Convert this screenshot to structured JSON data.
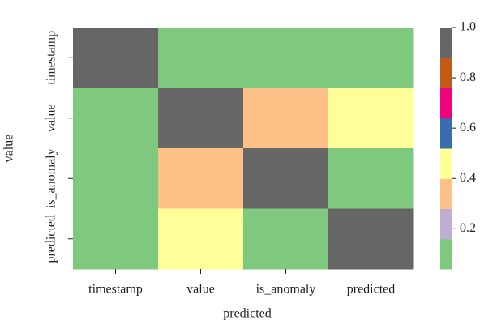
{
  "chart_data": {
    "type": "heatmap",
    "xlabel": "predicted",
    "ylabel": "value",
    "x_categories": [
      "timestamp",
      "value",
      "is_anomaly",
      "predicted"
    ],
    "y_categories": [
      "timestamp",
      "value",
      "is_anomaly",
      "predicted"
    ],
    "z": [
      [
        1,
        0.05,
        0.05,
        0.05
      ],
      [
        0.05,
        1,
        0.3,
        0.45
      ],
      [
        0.05,
        0.3,
        1,
        0.1
      ],
      [
        0.05,
        0.45,
        0.1,
        1
      ]
    ],
    "zlim": [
      0.04,
      1
    ],
    "colormap": [
      "#7fc97f",
      "#beaed4",
      "#fdc086",
      "#ffff99",
      "#386cb0",
      "#f0027f",
      "#bf5b17",
      "#666666"
    ],
    "cticks": [
      0.2,
      0.4,
      0.6,
      0.8,
      {
        "value": 1,
        "label": "1.0"
      }
    ]
  }
}
